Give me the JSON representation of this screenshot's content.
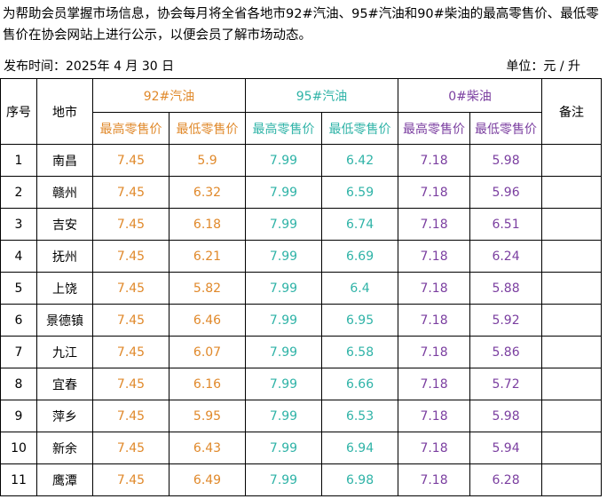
{
  "intro_text": "为帮助会员掌握市场信息，协会每月将全省各地市92#汽油、95#汽油和90#柴油的最高零售价、最低零售价在协会网站上进行公示，以便会员了解市场动态。",
  "publish_date": "发布时间：2025年 4 月 30 日",
  "unit": "单位：元 / 升",
  "colors": {
    "gas92": "#e0892b",
    "gas95": "#2fb3a7",
    "diesel0": "#7b3fa0"
  },
  "headers": {
    "seq": "序号",
    "city": "地市",
    "gas92": "92#汽油",
    "gas95": "95#汽油",
    "diesel0": "0#柴油",
    "remark": "备注",
    "max_price": "最高零售价",
    "min_price": "最低零售价"
  },
  "rows": [
    {
      "seq": "1",
      "city": "南昌",
      "g92_max": "7.45",
      "g92_min": "5.9",
      "g95_max": "7.99",
      "g95_min": "6.42",
      "d0_max": "7.18",
      "d0_min": "5.98",
      "remark": ""
    },
    {
      "seq": "2",
      "city": "赣州",
      "g92_max": "7.45",
      "g92_min": "6.32",
      "g95_max": "7.99",
      "g95_min": "6.59",
      "d0_max": "7.18",
      "d0_min": "5.96",
      "remark": ""
    },
    {
      "seq": "3",
      "city": "吉安",
      "g92_max": "7.45",
      "g92_min": "6.18",
      "g95_max": "7.99",
      "g95_min": "6.74",
      "d0_max": "7.18",
      "d0_min": "6.51",
      "remark": ""
    },
    {
      "seq": "4",
      "city": "抚州",
      "g92_max": "7.45",
      "g92_min": "6.21",
      "g95_max": "7.99",
      "g95_min": "6.69",
      "d0_max": "7.18",
      "d0_min": "6.24",
      "remark": ""
    },
    {
      "seq": "5",
      "city": "上饶",
      "g92_max": "7.45",
      "g92_min": "5.82",
      "g95_max": "7.99",
      "g95_min": "6.4",
      "d0_max": "7.18",
      "d0_min": "5.88",
      "remark": ""
    },
    {
      "seq": "6",
      "city": "景德镇",
      "g92_max": "7.45",
      "g92_min": "6.46",
      "g95_max": "7.99",
      "g95_min": "6.95",
      "d0_max": "7.18",
      "d0_min": "5.92",
      "remark": ""
    },
    {
      "seq": "7",
      "city": "九江",
      "g92_max": "7.45",
      "g92_min": "6.07",
      "g95_max": "7.99",
      "g95_min": "6.58",
      "d0_max": "7.18",
      "d0_min": "5.86",
      "remark": ""
    },
    {
      "seq": "8",
      "city": "宜春",
      "g92_max": "7.45",
      "g92_min": "6.16",
      "g95_max": "7.99",
      "g95_min": "6.66",
      "d0_max": "7.18",
      "d0_min": "5.72",
      "remark": ""
    },
    {
      "seq": "9",
      "city": "萍乡",
      "g92_max": "7.45",
      "g92_min": "5.95",
      "g95_max": "7.99",
      "g95_min": "6.53",
      "d0_max": "7.18",
      "d0_min": "5.98",
      "remark": ""
    },
    {
      "seq": "10",
      "city": "新余",
      "g92_max": "7.45",
      "g92_min": "6.43",
      "g95_max": "7.99",
      "g95_min": "6.94",
      "d0_max": "7.18",
      "d0_min": "5.94",
      "remark": ""
    },
    {
      "seq": "11",
      "city": "鹰潭",
      "g92_max": "7.45",
      "g92_min": "6.49",
      "g95_max": "7.99",
      "g95_min": "6.98",
      "d0_max": "7.18",
      "d0_min": "6.28",
      "remark": ""
    }
  ]
}
